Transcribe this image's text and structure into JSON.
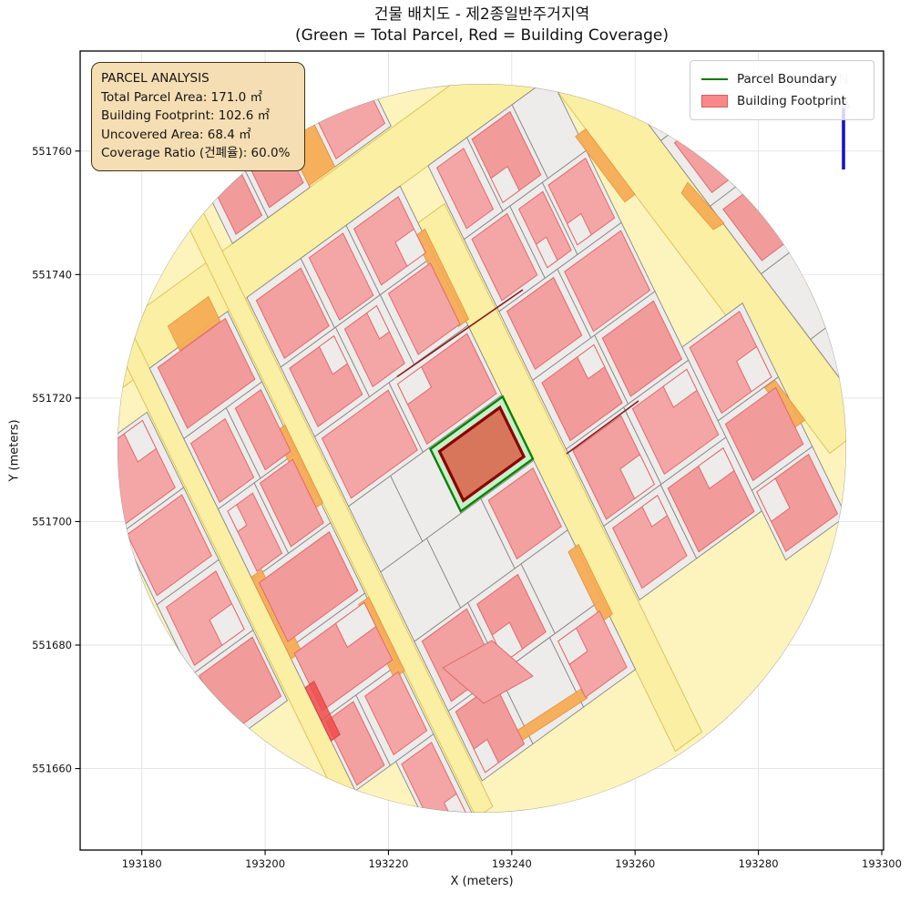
{
  "title": {
    "line1": "건물 배치도 - 제2종일반주거지역",
    "line2": "(Green = Total Parcel, Red = Building Coverage)"
  },
  "axes": {
    "x_label": "X (meters)",
    "y_label": "Y (meters)",
    "x_ticks": [
      193180,
      193200,
      193220,
      193240,
      193260,
      193280,
      193300
    ],
    "y_ticks": [
      551660,
      551680,
      551700,
      551720,
      551740,
      551760
    ]
  },
  "legend": {
    "items": [
      {
        "label": "Parcel Boundary",
        "type": "line",
        "color": "#007a00"
      },
      {
        "label": "Building Footprint",
        "type": "patch",
        "fill": "#f98888",
        "edge": "#d95f5f"
      }
    ]
  },
  "info_box": {
    "title": "PARCEL ANALYSIS",
    "lines": [
      "Total Parcel Area: 171.0 ㎡",
      "Building Footprint: 102.6 ㎡",
      "Uncovered Area: 68.4 ㎡",
      "Coverage Ratio (건폐율): 60.0%"
    ],
    "bg_color": "#f5deb3"
  },
  "north_arrow": {
    "label": "N",
    "color": "#1414cc"
  },
  "map_data": {
    "type": "cadastral-map",
    "zone": "제2종일반주거지역",
    "buffer_center_x_m": 193235,
    "buffer_center_y_m": 551712,
    "buffer_radius_m": 59,
    "total_parcel_area_m2": 171.0,
    "building_footprint_m2": 102.6,
    "uncovered_area_m2": 68.4,
    "coverage_ratio_pct": 60.0,
    "colors": {
      "road_fill": "#faefa3",
      "road_edge": "#dec35f",
      "buffer_ring": "#fcf4bc",
      "parcel_fill": "#edeceb",
      "parcel_edge": "#878787",
      "building_fill": "#f4a5a5",
      "building_edge": "#e16a6a",
      "accent_orange": "#f6ac56",
      "accent_red": "#f04c4c",
      "highlight_parcel_fill": "#c8f0c8",
      "highlight_parcel_edge": "#0a800a",
      "highlight_building_fill": "#d8765c",
      "highlight_building_edge": "#8b0000"
    }
  }
}
